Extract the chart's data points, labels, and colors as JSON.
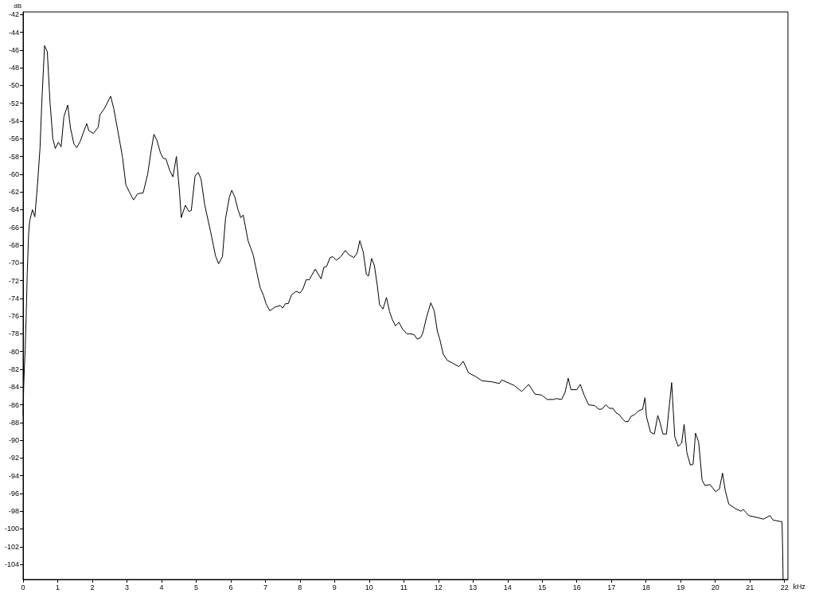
{
  "chart_data": {
    "type": "line",
    "xlabel": "kHz",
    "ylabel": "dB",
    "x": [
      0,
      0.02,
      0.06,
      0.09,
      0.12,
      0.16,
      0.19,
      0.27,
      0.34,
      0.42,
      0.49,
      0.54,
      0.59,
      0.62,
      0.7,
      0.78,
      0.86,
      0.93,
      1.02,
      1.1,
      1.18,
      1.29,
      1.37,
      1.47,
      1.55,
      1.65,
      1.77,
      1.84,
      1.9,
      2.03,
      2.17,
      2.22,
      2.35,
      2.53,
      2.62,
      2.76,
      2.87,
      2.97,
      3.07,
      3.19,
      3.31,
      3.47,
      3.6,
      3.69,
      3.78,
      3.86,
      3.97,
      4.05,
      4.13,
      4.24,
      4.33,
      4.43,
      4.52,
      4.57,
      4.69,
      4.79,
      4.86,
      4.97,
      5.06,
      5.14,
      5.25,
      5.42,
      5.56,
      5.65,
      5.76,
      5.85,
      5.96,
      6.03,
      6.12,
      6.21,
      6.29,
      6.36,
      6.5,
      6.65,
      6.75,
      6.85,
      6.95,
      7.02,
      7.13,
      7.27,
      7.43,
      7.5,
      7.58,
      7.66,
      7.76,
      7.89,
      8,
      8.08,
      8.18,
      8.27,
      8.44,
      8.61,
      8.69,
      8.77,
      8.87,
      8.95,
      9.05,
      9.18,
      9.31,
      9.42,
      9.56,
      9.65,
      9.73,
      9.83,
      9.92,
      9.98,
      10.07,
      10.15,
      10.23,
      10.3,
      10.4,
      10.5,
      10.59,
      10.67,
      10.76,
      10.86,
      10.97,
      11.09,
      11.2,
      11.3,
      11.39,
      11.49,
      11.55,
      11.66,
      11.78,
      11.88,
      11.97,
      12.04,
      12.14,
      12.26,
      12.41,
      12.59,
      12.72,
      12.87,
      13.07,
      13.26,
      13.53,
      13.76,
      13.83,
      14.18,
      14.41,
      14.61,
      14.79,
      14.98,
      15.14,
      15.33,
      15.4,
      15.56,
      15.66,
      15.75,
      15.83,
      16,
      16.1,
      16.21,
      16.34,
      16.52,
      16.63,
      16.72,
      16.84,
      16.94,
      17.04,
      17.13,
      17.22,
      17.32,
      17.4,
      17.48,
      17.57,
      17.67,
      17.78,
      17.9,
      17.97,
      18.01,
      18.13,
      18.24,
      18.34,
      18.41,
      18.49,
      18.59,
      18.74,
      18.83,
      18.93,
      19.03,
      19.1,
      19.18,
      19.28,
      19.36,
      19.43,
      19.52,
      19.62,
      19.7,
      19.85,
      20.01,
      20.12,
      20.21,
      20.29,
      20.39,
      20.58,
      20.74,
      20.81,
      20.97,
      21.2,
      21.39,
      21.58,
      21.67,
      21.93,
      21.95,
      21.96
    ],
    "series": [
      {
        "color": "#000000",
        "values": [
          -87.2,
          -83.6,
          -79.8,
          -76,
          -71.2,
          -66.7,
          -65.3,
          -64,
          -64.8,
          -61,
          -57,
          -52,
          -48,
          -45.5,
          -46.2,
          -52,
          -56,
          -57.1,
          -56.4,
          -56.9,
          -53.5,
          -52.2,
          -54.8,
          -56.6,
          -57,
          -56.3,
          -55,
          -54.3,
          -55.1,
          -55.4,
          -54.7,
          -53.3,
          -52.6,
          -51.2,
          -52.6,
          -55.6,
          -58,
          -61.2,
          -62,
          -62.9,
          -62.2,
          -62.1,
          -60,
          -57.6,
          -55.5,
          -56.1,
          -57.6,
          -58.2,
          -58.3,
          -59.6,
          -60.3,
          -58,
          -62,
          -64.9,
          -63.5,
          -64.2,
          -64.1,
          -60.2,
          -59.8,
          -60.5,
          -63.5,
          -66.5,
          -69.2,
          -70.1,
          -69.3,
          -65,
          -62.6,
          -61.8,
          -62.6,
          -64,
          -64.9,
          -64.6,
          -67.5,
          -69.1,
          -71,
          -72.8,
          -73.7,
          -74.6,
          -75.4,
          -75,
          -74.8,
          -75.1,
          -74.6,
          -74.6,
          -73.6,
          -73.2,
          -73.4,
          -73,
          -71.9,
          -71.9,
          -70.7,
          -71.8,
          -70.5,
          -70.4,
          -69.4,
          -69.3,
          -69.7,
          -69.3,
          -68.6,
          -69.1,
          -69.4,
          -68.9,
          -67.5,
          -68.8,
          -71.3,
          -71.5,
          -69.5,
          -70.3,
          -72.4,
          -74.7,
          -75.2,
          -73.9,
          -75.5,
          -76.4,
          -77.1,
          -76.7,
          -77.5,
          -78,
          -78,
          -78.1,
          -78.6,
          -78.4,
          -77.9,
          -76.1,
          -74.5,
          -75.4,
          -77.7,
          -78.6,
          -80.3,
          -81,
          -81.3,
          -81.7,
          -81.1,
          -82.4,
          -82.8,
          -83.3,
          -83.4,
          -83.6,
          -83.2,
          -83.8,
          -84.5,
          -83.7,
          -84.8,
          -84.9,
          -85.4,
          -85.4,
          -85.3,
          -85.4,
          -84.6,
          -83,
          -84.3,
          -84.3,
          -83.7,
          -84.9,
          -86,
          -86.1,
          -86.5,
          -86.5,
          -86,
          -86.4,
          -86.4,
          -86.9,
          -87.1,
          -87.6,
          -87.9,
          -87.9,
          -87.3,
          -87.1,
          -86.7,
          -86.5,
          -85.2,
          -87.3,
          -89.1,
          -89.3,
          -87.2,
          -88.1,
          -89.3,
          -89.3,
          -83.5,
          -89.6,
          -90.7,
          -90.3,
          -88.2,
          -91.4,
          -92.8,
          -92.7,
          -89.2,
          -90.2,
          -94.5,
          -95.1,
          -95,
          -95.8,
          -95.5,
          -93.7,
          -95.7,
          -97.2,
          -97.7,
          -98,
          -97.8,
          -98.5,
          -98.7,
          -98.9,
          -98.5,
          -99,
          -99.2,
          -102.9,
          -105.7
        ]
      }
    ],
    "xlim": [
      0,
      22.1
    ],
    "xticks": [
      0,
      1,
      2,
      3,
      4,
      5,
      6,
      7,
      8,
      9,
      10,
      11,
      12,
      13,
      14,
      15,
      16,
      17,
      18,
      19,
      20,
      21,
      22
    ],
    "ylim": [
      -105.7,
      -41.7
    ],
    "yticks": [
      -104,
      -102,
      -100,
      -98,
      -96,
      -94,
      -92,
      -90,
      -88,
      -86,
      -84,
      -82,
      -80,
      -78,
      -76,
      -74,
      -72,
      -70,
      -68,
      -66,
      -64,
      -62,
      -60,
      -58,
      -56,
      -54,
      -52,
      -50,
      -48,
      -46,
      -44,
      -42
    ],
    "grid": false,
    "marker": "none",
    "line_style": "solid"
  }
}
